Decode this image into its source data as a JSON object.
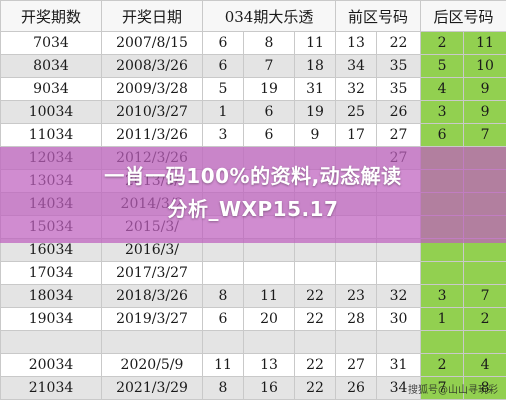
{
  "sheet": {
    "headers": [
      "开奖期数",
      "开奖日期",
      "034期大乐透",
      "前区号码",
      "后区号码"
    ],
    "rows": [
      {
        "issue": "7034",
        "date": "2007/8/15",
        "front": [
          "6",
          "8",
          "11",
          "13",
          "22"
        ],
        "back": [
          "2",
          "11"
        ]
      },
      {
        "issue": "8034",
        "date": "2008/3/26",
        "front": [
          "6",
          "7",
          "18",
          "34",
          "35"
        ],
        "back": [
          "5",
          "10"
        ]
      },
      {
        "issue": "9034",
        "date": "2009/3/28",
        "front": [
          "5",
          "19",
          "31",
          "32",
          "35"
        ],
        "back": [
          "4",
          "9"
        ]
      },
      {
        "issue": "10034",
        "date": "2010/3/27",
        "front": [
          "1",
          "6",
          "19",
          "25",
          "26"
        ],
        "back": [
          "3",
          "9"
        ]
      },
      {
        "issue": "11034",
        "date": "2011/3/26",
        "front": [
          "3",
          "6",
          "9",
          "17",
          "27"
        ],
        "back": [
          "6",
          "7"
        ]
      },
      {
        "issue": "12034",
        "date": "2012/3/26",
        "front": [
          "",
          "",
          "",
          "",
          "27"
        ],
        "back": [
          "",
          ""
        ]
      },
      {
        "issue": "13034",
        "date": "2013/3/",
        "front": [
          "",
          "",
          "",
          "",
          ""
        ],
        "back": [
          "",
          ""
        ]
      },
      {
        "issue": "14034",
        "date": "2014/3/2",
        "front": [
          "",
          "",
          "",
          "",
          ""
        ],
        "back": [
          "",
          ""
        ]
      },
      {
        "issue": "15034",
        "date": "2015/3/",
        "front": [
          "",
          "",
          "",
          "",
          ""
        ],
        "back": [
          "",
          ""
        ]
      },
      {
        "issue": "16034",
        "date": "2016/3/",
        "front": [
          "",
          "",
          "",
          "",
          ""
        ],
        "back": [
          "",
          ""
        ]
      },
      {
        "issue": "17034",
        "date": "2017/3/27",
        "front": [
          "",
          "",
          "",
          "",
          ""
        ],
        "back": [
          "",
          ""
        ]
      },
      {
        "issue": "18034",
        "date": "2018/3/26",
        "front": [
          "8",
          "11",
          "22",
          "23",
          "32"
        ],
        "back": [
          "3",
          "7"
        ]
      },
      {
        "issue": "19034",
        "date": "2019/3/27",
        "front": [
          "6",
          "20",
          "22",
          "28",
          "30"
        ],
        "back": [
          "1",
          "2"
        ]
      },
      {
        "issue": "",
        "date": "",
        "front": [
          "",
          "",
          "",
          "",
          ""
        ],
        "back": [
          "",
          ""
        ]
      },
      {
        "issue": "20034",
        "date": "2020/5/9",
        "front": [
          "11",
          "13",
          "22",
          "27",
          "31"
        ],
        "back": [
          "2",
          "4"
        ]
      },
      {
        "issue": "21034",
        "date": "2021/3/29",
        "front": [
          "8",
          "16",
          "22",
          "26",
          "34"
        ],
        "back": [
          "7",
          "8"
        ]
      }
    ]
  },
  "banner": {
    "line1": "一肖一码100%的资料,动态解读",
    "line2": "分析_WXP15.17"
  },
  "watermark": "搜狐号@山山寻玩彩"
}
